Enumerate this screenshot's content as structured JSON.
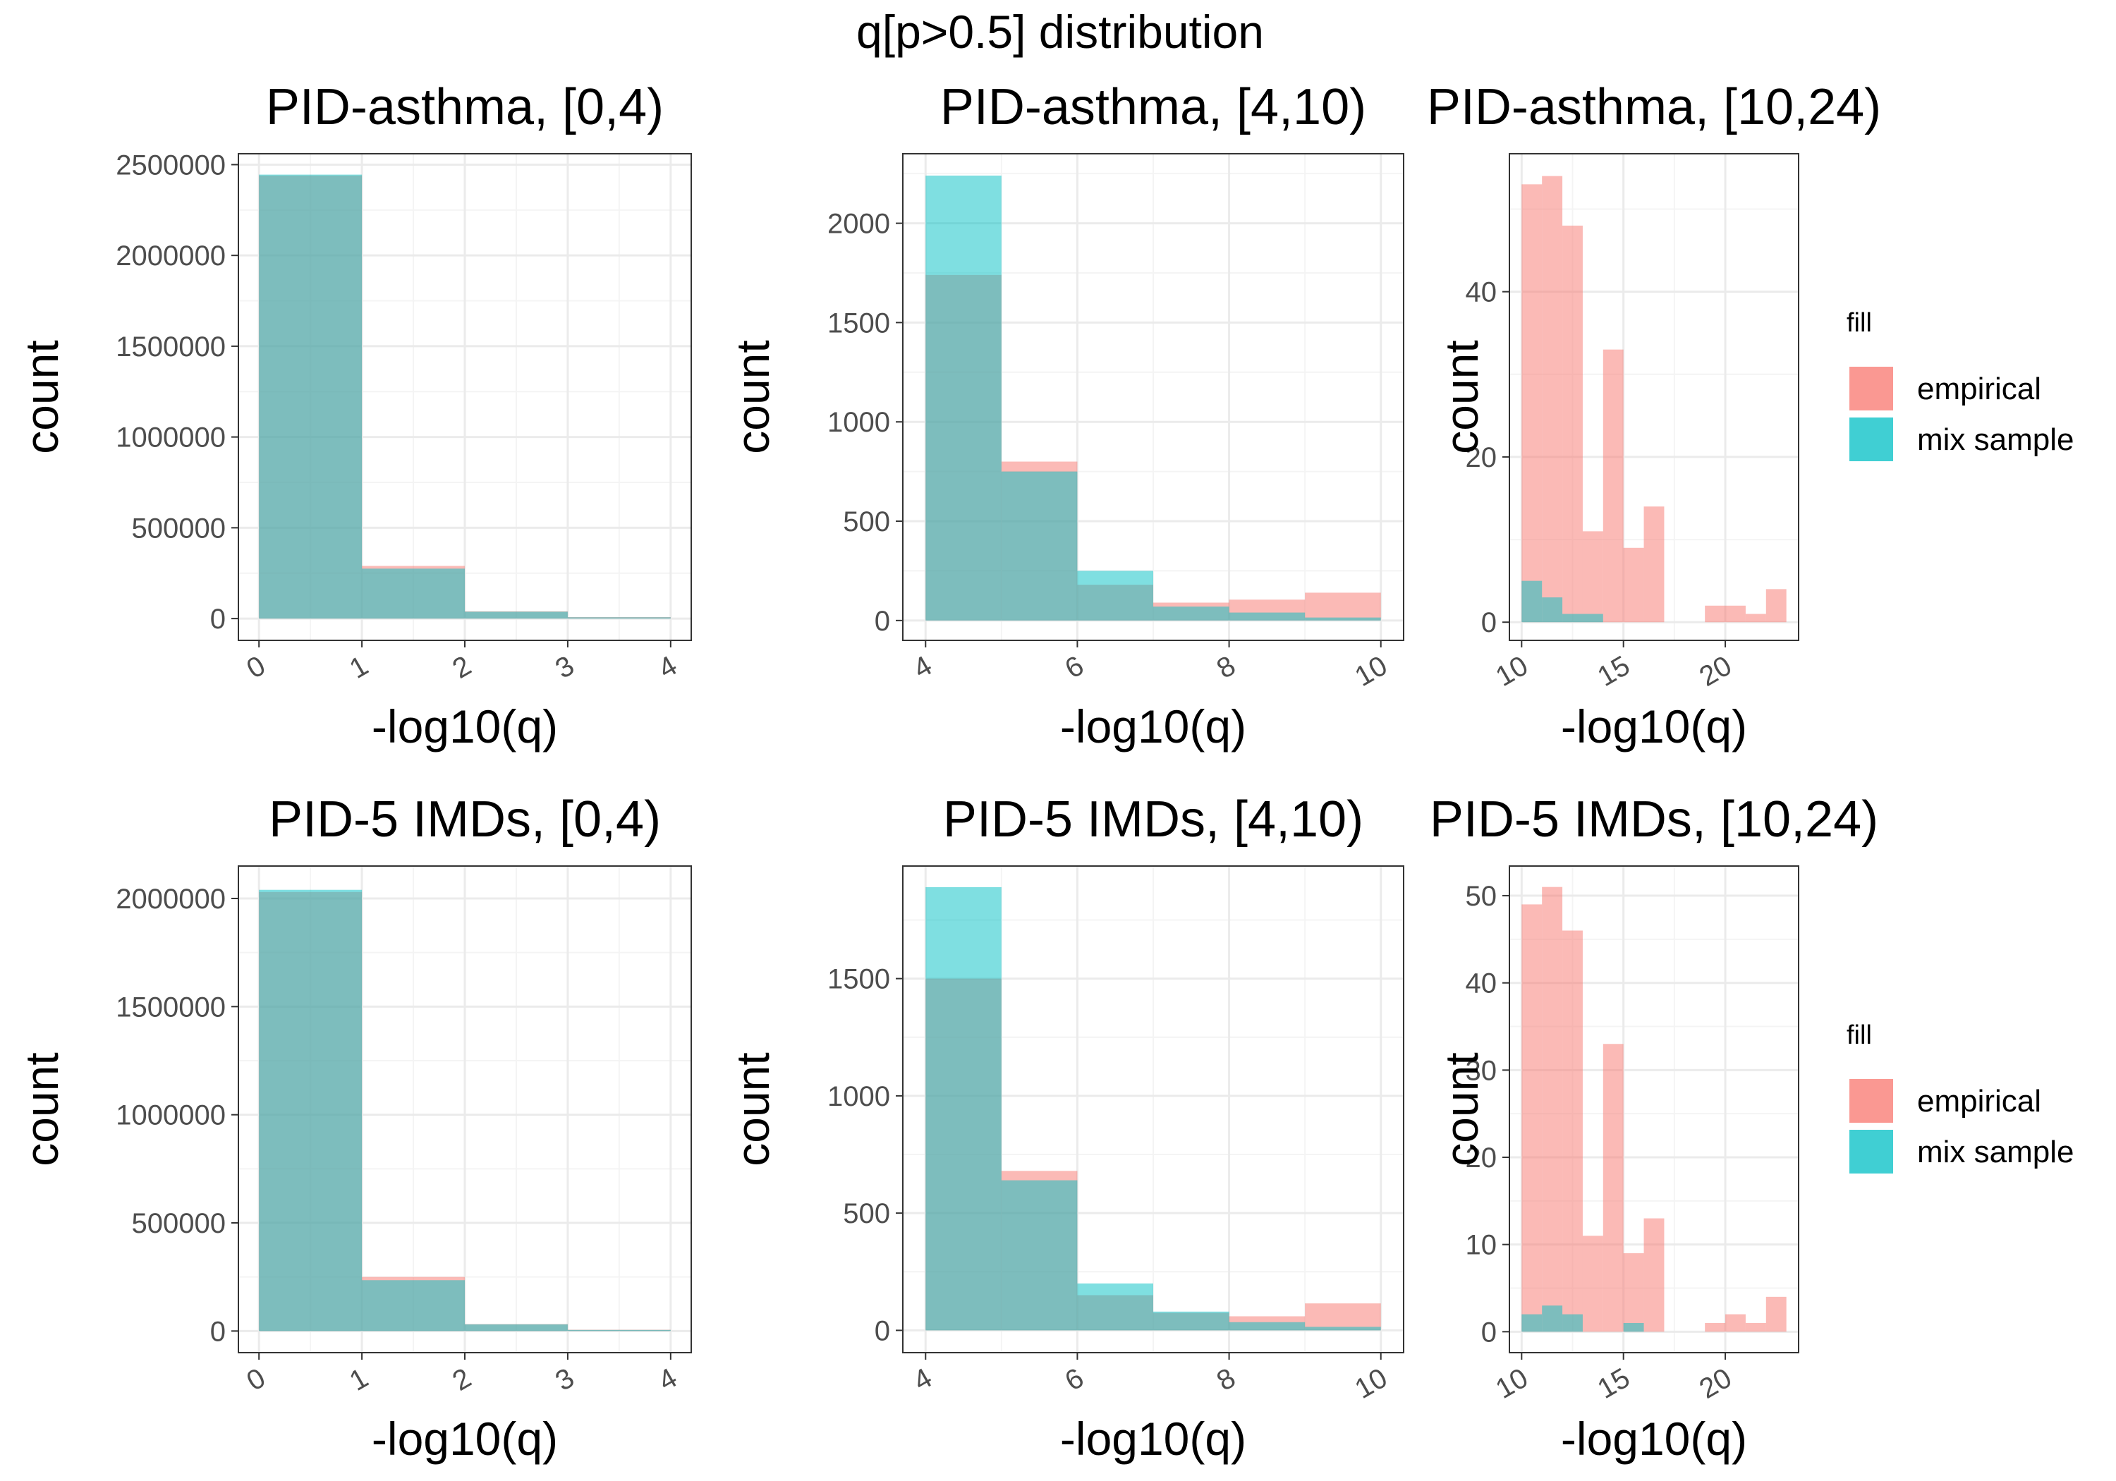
{
  "figure_title": "q[p>0.5] distribution",
  "colors": {
    "empirical": "#F8766D",
    "mix sample": "#00BFC4",
    "grid_major": "#ebebeb",
    "grid_minor": "#f4f4f4",
    "border": "#333333",
    "tick_text": "#4d4d4d"
  },
  "legend": {
    "title": "fill",
    "items": [
      "empirical",
      "mix sample"
    ]
  },
  "chart_data": [
    {
      "type": "bar",
      "title": "PID-asthma, [0,4)",
      "xlabel": "-log10(q)",
      "ylabel": "count",
      "xlim": [
        -0.2,
        4.2
      ],
      "ylim": [
        -120000,
        2560000
      ],
      "xticks": [
        0,
        1,
        2,
        3,
        4
      ],
      "xtick_labels": [
        "0",
        "1",
        "2",
        "3",
        "4"
      ],
      "yticks": [
        0,
        500000,
        1000000,
        1500000,
        2000000,
        2500000
      ],
      "ytick_labels": [
        "0",
        "500000",
        "1000000",
        "1500000",
        "2000000",
        "2500000"
      ],
      "bins": [
        [
          0,
          1
        ],
        [
          1,
          2
        ],
        [
          2,
          3
        ],
        [
          3,
          4
        ]
      ],
      "series": [
        {
          "name": "empirical",
          "values": [
            2440000,
            290000,
            40000,
            8000
          ]
        },
        {
          "name": "mix sample",
          "values": [
            2445000,
            275000,
            38000,
            7000
          ]
        }
      ]
    },
    {
      "type": "bar",
      "title": "PID-asthma, [4,10)",
      "xlabel": "-log10(q)",
      "ylabel": "count",
      "xlim": [
        3.7,
        10.3
      ],
      "ylim": [
        -100,
        2350
      ],
      "xticks": [
        4,
        6,
        8,
        10
      ],
      "xtick_labels": [
        "4",
        "6",
        "8",
        "10"
      ],
      "yticks": [
        0,
        500,
        1000,
        1500,
        2000
      ],
      "ytick_labels": [
        "0",
        "500",
        "1000",
        "1500",
        "2000"
      ],
      "bins": [
        [
          4,
          5
        ],
        [
          5,
          6
        ],
        [
          6,
          7
        ],
        [
          7,
          8
        ],
        [
          8,
          9
        ],
        [
          9,
          10
        ]
      ],
      "series": [
        {
          "name": "empirical",
          "values": [
            1740,
            800,
            180,
            90,
            105,
            140
          ]
        },
        {
          "name": "mix sample",
          "values": [
            2240,
            750,
            250,
            70,
            40,
            15
          ]
        }
      ]
    },
    {
      "type": "bar",
      "title": "PID-asthma, [10,24)",
      "xlabel": "-log10(q)",
      "ylabel": "count",
      "xlim": [
        9.4,
        23.6
      ],
      "ylim": [
        -2.2,
        56.7
      ],
      "xticks": [
        10,
        15,
        20
      ],
      "xtick_labels": [
        "10",
        "15",
        "20"
      ],
      "yticks": [
        0,
        20,
        40
      ],
      "ytick_labels": [
        "0",
        "20",
        "40"
      ],
      "bins": [
        [
          10,
          11
        ],
        [
          11,
          12
        ],
        [
          12,
          13
        ],
        [
          13,
          14
        ],
        [
          14,
          15
        ],
        [
          15,
          16
        ],
        [
          16,
          17
        ],
        [
          17,
          18
        ],
        [
          18,
          19
        ],
        [
          19,
          20
        ],
        [
          20,
          21
        ],
        [
          21,
          22
        ],
        [
          22,
          23
        ]
      ],
      "series": [
        {
          "name": "empirical",
          "values": [
            53,
            54,
            48,
            11,
            33,
            9,
            14,
            0,
            0,
            2,
            2,
            1,
            4
          ]
        },
        {
          "name": "mix sample",
          "values": [
            5,
            3,
            1,
            1,
            0,
            0,
            0,
            0,
            0,
            0,
            0,
            0,
            0
          ]
        }
      ]
    },
    {
      "type": "bar",
      "title": "PID-5 IMDs, [0,4)",
      "xlabel": "-log10(q)",
      "ylabel": "count",
      "xlim": [
        -0.2,
        4.2
      ],
      "ylim": [
        -100000,
        2150000
      ],
      "xticks": [
        0,
        1,
        2,
        3,
        4
      ],
      "xtick_labels": [
        "0",
        "1",
        "2",
        "3",
        "4"
      ],
      "yticks": [
        0,
        500000,
        1000000,
        1500000,
        2000000
      ],
      "ytick_labels": [
        "0",
        "500000",
        "1000000",
        "1500000",
        "2000000"
      ],
      "bins": [
        [
          0,
          1
        ],
        [
          1,
          2
        ],
        [
          2,
          3
        ],
        [
          3,
          4
        ]
      ],
      "series": [
        {
          "name": "empirical",
          "values": [
            2030000,
            250000,
            32000,
            6000
          ]
        },
        {
          "name": "mix sample",
          "values": [
            2040000,
            235000,
            31000,
            5000
          ]
        }
      ]
    },
    {
      "type": "bar",
      "title": "PID-5 IMDs, [4,10)",
      "xlabel": "-log10(q)",
      "ylabel": "count",
      "xlim": [
        3.7,
        10.3
      ],
      "ylim": [
        -95,
        1980
      ],
      "xticks": [
        4,
        6,
        8,
        10
      ],
      "xtick_labels": [
        "4",
        "6",
        "8",
        "10"
      ],
      "yticks": [
        0,
        500,
        1000,
        1500
      ],
      "ytick_labels": [
        "0",
        "500",
        "1000",
        "1500"
      ],
      "bins": [
        [
          4,
          5
        ],
        [
          5,
          6
        ],
        [
          6,
          7
        ],
        [
          7,
          8
        ],
        [
          8,
          9
        ],
        [
          9,
          10
        ]
      ],
      "series": [
        {
          "name": "empirical",
          "values": [
            1500,
            680,
            150,
            75,
            60,
            115
          ]
        },
        {
          "name": "mix sample",
          "values": [
            1890,
            640,
            200,
            80,
            35,
            15
          ]
        }
      ]
    },
    {
      "type": "bar",
      "title": "PID-5 IMDs, [10,24)",
      "xlabel": "-log10(q)",
      "ylabel": "count",
      "xlim": [
        9.4,
        23.6
      ],
      "ylim": [
        -2.4,
        53.4
      ],
      "xticks": [
        10,
        15,
        20
      ],
      "xtick_labels": [
        "10",
        "15",
        "20"
      ],
      "yticks": [
        0,
        10,
        20,
        30,
        40,
        50
      ],
      "ytick_labels": [
        "0",
        "10",
        "20",
        "30",
        "40",
        "50"
      ],
      "bins": [
        [
          10,
          11
        ],
        [
          11,
          12
        ],
        [
          12,
          13
        ],
        [
          13,
          14
        ],
        [
          14,
          15
        ],
        [
          15,
          16
        ],
        [
          16,
          17
        ],
        [
          17,
          18
        ],
        [
          18,
          19
        ],
        [
          19,
          20
        ],
        [
          20,
          21
        ],
        [
          21,
          22
        ],
        [
          22,
          23
        ]
      ],
      "series": [
        {
          "name": "empirical",
          "values": [
            49,
            51,
            46,
            11,
            33,
            9,
            13,
            0,
            0,
            1,
            2,
            1,
            4
          ]
        },
        {
          "name": "mix sample",
          "values": [
            2,
            3,
            2,
            0,
            0,
            1,
            0,
            0,
            0,
            0,
            0,
            0,
            0
          ]
        }
      ]
    }
  ]
}
